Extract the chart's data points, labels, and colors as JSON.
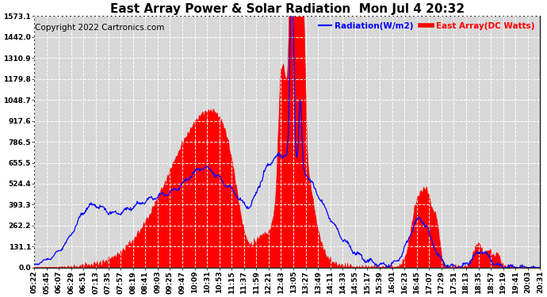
{
  "title": "East Array Power & Solar Radiation  Mon Jul 4 20:32",
  "copyright": "Copyright 2022 Cartronics.com",
  "legend_radiation": "Radiation(W/m2)",
  "legend_east": "East Array(DC Watts)",
  "radiation_color": "blue",
  "east_color": "red",
  "background_color": "#ffffff",
  "plot_bg_color": "#d8d8d8",
  "grid_color": "#ffffff",
  "yticks": [
    0.0,
    131.1,
    262.2,
    393.3,
    524.4,
    655.5,
    786.5,
    917.6,
    1048.7,
    1179.8,
    1310.9,
    1442.0,
    1573.1
  ],
  "ymax": 1573.1,
  "ymin": 0.0,
  "xtick_labels": [
    "05:22",
    "05:45",
    "06:07",
    "06:29",
    "06:51",
    "07:13",
    "07:35",
    "07:57",
    "08:19",
    "08:41",
    "09:03",
    "09:25",
    "09:47",
    "10:09",
    "10:31",
    "10:53",
    "11:15",
    "11:37",
    "11:59",
    "12:21",
    "12:43",
    "13:05",
    "13:27",
    "13:49",
    "14:11",
    "14:33",
    "14:55",
    "15:17",
    "15:39",
    "16:01",
    "16:23",
    "16:45",
    "17:07",
    "17:29",
    "17:51",
    "18:13",
    "18:35",
    "18:57",
    "19:19",
    "19:41",
    "20:03",
    "20:31"
  ],
  "title_fontsize": 11,
  "tick_fontsize": 6.5,
  "copyright_fontsize": 7.5
}
